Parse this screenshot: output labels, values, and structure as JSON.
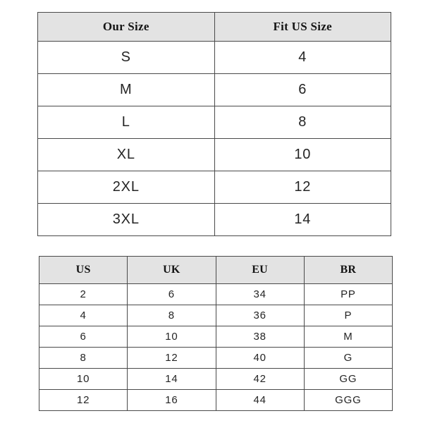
{
  "colors": {
    "header_bg": "#e3e3e3",
    "border": "#4a4a4a",
    "text": "#252525",
    "background": "#ffffff"
  },
  "size_chart": {
    "headers": [
      "Our Size",
      "Fit US Size"
    ],
    "rows": [
      [
        "S",
        "4"
      ],
      [
        "M",
        "6"
      ],
      [
        "L",
        "8"
      ],
      [
        "XL",
        "10"
      ],
      [
        "2XL",
        "12"
      ],
      [
        "3XL",
        "14"
      ]
    ]
  },
  "conversion_chart": {
    "headers": [
      "US",
      "UK",
      "EU",
      "BR"
    ],
    "rows": [
      [
        "2",
        "6",
        "34",
        "PP"
      ],
      [
        "4",
        "8",
        "36",
        "P"
      ],
      [
        "6",
        "10",
        "38",
        "M"
      ],
      [
        "8",
        "12",
        "40",
        "G"
      ],
      [
        "10",
        "14",
        "42",
        "GG"
      ],
      [
        "12",
        "16",
        "44",
        "GGG"
      ]
    ]
  }
}
